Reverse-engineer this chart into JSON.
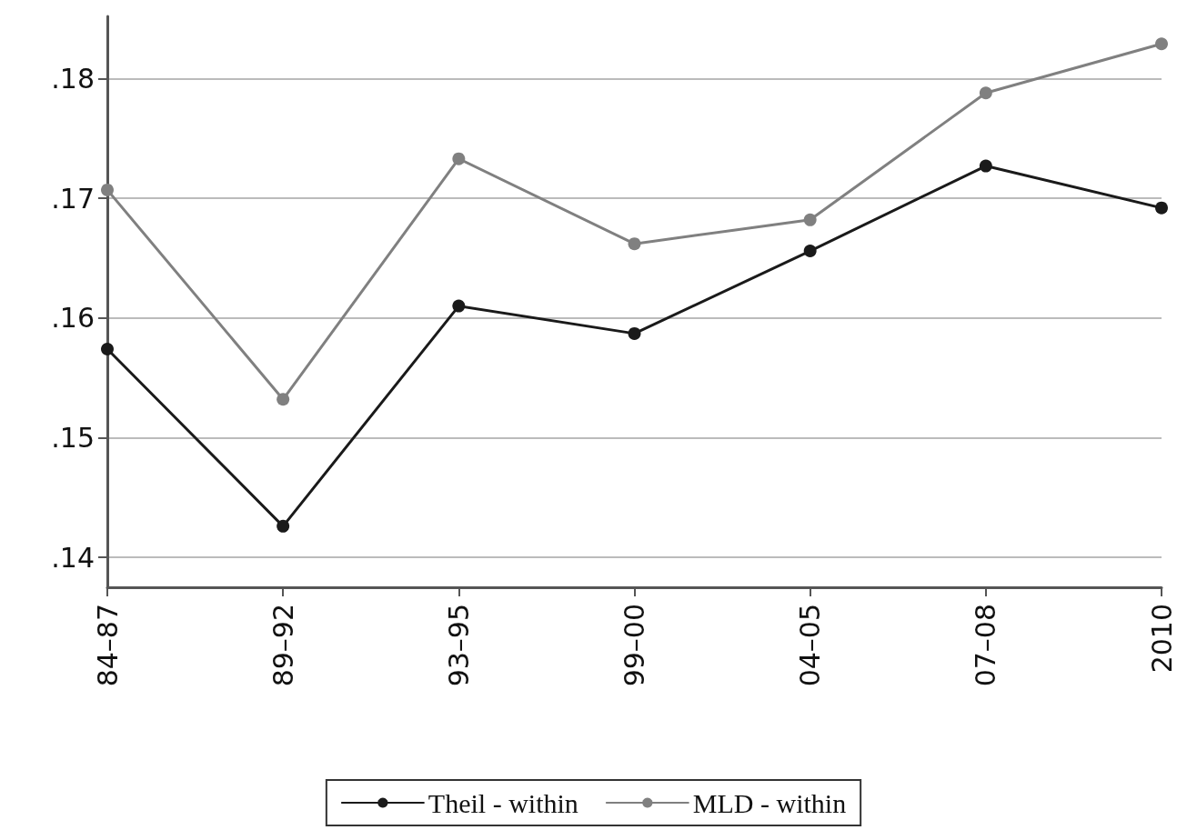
{
  "chart_data": {
    "type": "line",
    "categories": [
      "84–87",
      "89–92",
      "93–95",
      "99–00",
      "04–05",
      "07–08",
      "2010"
    ],
    "series": [
      {
        "name": "Theil - within",
        "color": "#1a1a1a",
        "values": [
          0.1574,
          0.1426,
          0.161,
          0.1587,
          0.1656,
          0.1727,
          0.1692
        ]
      },
      {
        "name": "MLD - within",
        "color": "#808080",
        "values": [
          0.1707,
          0.1532,
          0.1733,
          0.1662,
          0.1682,
          0.1788,
          0.1829
        ]
      }
    ],
    "ylim": [
      0.1375,
      0.1852
    ],
    "yticks": [
      {
        "value": 0.14,
        "label": ".14"
      },
      {
        "value": 0.15,
        "label": ".15"
      },
      {
        "value": 0.16,
        "label": ".16"
      },
      {
        "value": 0.17,
        "label": ".17"
      },
      {
        "value": 0.18,
        "label": ".18"
      }
    ],
    "grid": "y",
    "legend": "bottom",
    "marker": "circle",
    "line_style": "solid"
  }
}
